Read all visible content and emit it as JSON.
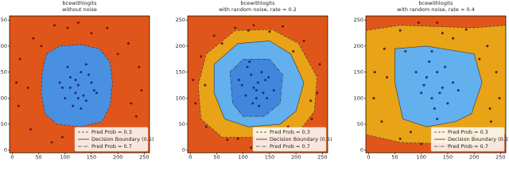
{
  "chart_data": [
    {
      "type": "scatter",
      "title": "bcewithlogits",
      "subtitle": "without noise",
      "xlim": [
        -5,
        260
      ],
      "ylim": [
        -5,
        258
      ],
      "xticks": [
        0,
        50,
        100,
        150,
        200,
        250
      ],
      "yticks": [
        0,
        50,
        100,
        150,
        200,
        250
      ],
      "background": "#e0561a",
      "legend_corner": "lower right",
      "legend": [
        {
          "label": "Pred Prob = 0.3",
          "style": "dashed"
        },
        {
          "label": "Decision Boundary (0.5)",
          "style": "solid"
        },
        {
          "label": "Pred Prob = 0.7",
          "style": "dashdot"
        }
      ],
      "regions": [
        {
          "color": "#4a90e0",
          "style": "dashed",
          "x": [
            65,
            90,
            130,
            165,
            185,
            190,
            185,
            170,
            130,
            85,
            62,
            55,
            57
          ],
          "y": [
            185,
            200,
            203,
            195,
            170,
            130,
            85,
            55,
            45,
            50,
            70,
            110,
            150
          ]
        }
      ],
      "series": [
        {
          "color": "#1a2f8a",
          "x": [
            100,
            110,
            120,
            130,
            140,
            150,
            95,
            105,
            115,
            125,
            135,
            145,
            155,
            120,
            130,
            110,
            140,
            125,
            90,
            160
          ],
          "y": [
            100,
            140,
            110,
            150,
            95,
            130,
            120,
            160,
            85,
            125,
            105,
            145,
            115,
            135,
            80,
            120,
            165,
            100,
            130,
            110
          ]
        },
        {
          "color": "#6b1a1a",
          "x": [
            125,
            180,
            220,
            240,
            245,
            235,
            210,
            165,
            120,
            75,
            35,
            12,
            8,
            15,
            40,
            80,
            150,
            200,
            225,
            190,
            95,
            30,
            55,
            105
          ],
          "y": [
            245,
            235,
            205,
            160,
            115,
            65,
            30,
            12,
            8,
            15,
            40,
            85,
            130,
            175,
            215,
            240,
            225,
            185,
            90,
            40,
            25,
            120,
            200,
            235
          ]
        }
      ]
    },
    {
      "type": "scatter",
      "title": "bcewithlogits",
      "subtitle": "with random noise, rate = 0.2",
      "xlim": [
        -5,
        260
      ],
      "ylim": [
        -5,
        258
      ],
      "xticks": [
        0,
        50,
        100,
        150,
        200,
        250
      ],
      "yticks": [
        0,
        50,
        100,
        150,
        200,
        250
      ],
      "background": "#e0561a",
      "legend_corner": "lower right",
      "legend": [
        {
          "label": "Pred Prob = 0.3",
          "style": "dashed"
        },
        {
          "label": "Decision Boundary (0.5)",
          "style": "solid"
        },
        {
          "label": "Pred Prob = 0.7",
          "style": "dashdot"
        }
      ],
      "regions": [
        {
          "color": "#e8a317",
          "style": "dashed",
          "x": [
            30,
            85,
            155,
            205,
            240,
            235,
            205,
            150,
            60,
            20,
            15
          ],
          "y": [
            185,
            230,
            232,
            205,
            140,
            75,
            35,
            25,
            25,
            60,
            125
          ]
        },
        {
          "color": "#62b0ee",
          "style": "solid",
          "x": [
            45,
            90,
            150,
            190,
            215,
            200,
            170,
            110,
            65,
            45
          ],
          "y": [
            165,
            205,
            210,
            185,
            130,
            75,
            50,
            45,
            60,
            110
          ]
        },
        {
          "color": "#3f86dc",
          "style": "dashdot",
          "x": [
            75,
            100,
            150,
            175,
            170,
            140,
            100,
            80
          ],
          "y": [
            150,
            175,
            175,
            145,
            90,
            65,
            65,
            90
          ]
        }
      ],
      "series": [
        {
          "color": "#1a2f8a",
          "x": [
            105,
            115,
            125,
            135,
            145,
            98,
            108,
            118,
            128,
            138,
            148,
            120,
            130,
            112,
            142,
            125,
            92,
            158
          ],
          "y": [
            105,
            145,
            115,
            150,
            100,
            125,
            160,
            90,
            130,
            110,
            140,
            120,
            85,
            170,
            135,
            100,
            135,
            115
          ]
        },
        {
          "color": "#6b1a1a",
          "x": [
            120,
            175,
            215,
            245,
            240,
            230,
            205,
            160,
            115,
            70,
            30,
            10,
            5,
            20,
            45,
            85,
            150,
            195,
            228,
            185,
            90,
            28,
            60,
            110
          ],
          "y": [
            240,
            238,
            210,
            165,
            110,
            60,
            25,
            15,
            5,
            20,
            45,
            90,
            135,
            180,
            220,
            235,
            228,
            190,
            95,
            45,
            22,
            125,
            205,
            230
          ]
        }
      ]
    },
    {
      "type": "scatter",
      "title": "bcewithlogits",
      "subtitle": "with random noise, rate = 0.4",
      "xlim": [
        -5,
        260
      ],
      "ylim": [
        -5,
        258
      ],
      "xticks": [
        0,
        50,
        100,
        150,
        200,
        250
      ],
      "yticks": [
        0,
        50,
        100,
        150,
        200,
        250
      ],
      "background": "#e0561a",
      "legend_corner": "lower right",
      "legend": [
        {
          "label": "Pred Prob = 0.3",
          "style": "dashed"
        },
        {
          "label": "Decision Boundary (0.5)",
          "style": "solid"
        },
        {
          "label": "Pred Prob = 0.7",
          "style": "dashdot"
        }
      ],
      "regions": [
        {
          "color": "#e8a317",
          "style": "dashed",
          "x": [
            -5,
            60,
            200,
            260,
            260,
            220,
            60,
            -5
          ],
          "y": [
            230,
            240,
            235,
            240,
            30,
            10,
            15,
            30
          ]
        },
        {
          "color": "#62b0ee",
          "style": "solid",
          "x": [
            50,
            110,
            200,
            215,
            195,
            165,
            110,
            65,
            50
          ],
          "y": [
            195,
            200,
            185,
            130,
            70,
            55,
            45,
            60,
            130
          ]
        }
      ],
      "series": [
        {
          "color": "#1a2f8a",
          "x": [
            100,
            110,
            120,
            130,
            140,
            150,
            160,
            115,
            125,
            135,
            145,
            105,
            170,
            130,
            120,
            90
          ],
          "y": [
            110,
            140,
            100,
            150,
            120,
            90,
            130,
            170,
            80,
            110,
            160,
            125,
            115,
            60,
            190,
            150
          ]
        },
        {
          "color": "#6b1a1a",
          "x": [
            130,
            185,
            225,
            242,
            248,
            232,
            200,
            150,
            100,
            60,
            25,
            10,
            12,
            30,
            60,
            95,
            160,
            210,
            230,
            175,
            80,
            35,
            70,
            140
          ],
          "y": [
            245,
            232,
            200,
            150,
            100,
            55,
            28,
            10,
            12,
            22,
            55,
            100,
            150,
            195,
            230,
            245,
            215,
            175,
            80,
            35,
            35,
            140,
            190,
            225
          ]
        }
      ]
    }
  ]
}
